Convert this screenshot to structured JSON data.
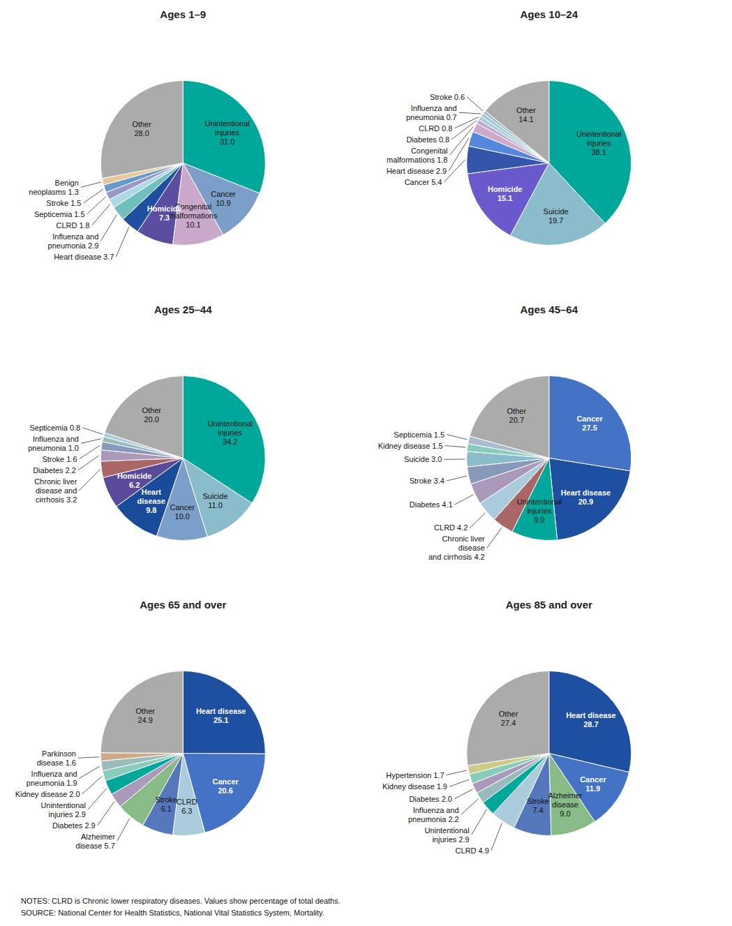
{
  "chart_data": [
    {
      "type": "pie",
      "title": "Ages 1–9",
      "categories": [
        "Unintentional\ninjuries",
        "Cancer",
        "Congenital\nmalformations",
        "Homicide",
        "Heart disease",
        "Influenza and\npneumonia",
        "CLRD",
        "Septicemia",
        "Stroke",
        "Benign\nneoplasms",
        "Other"
      ],
      "values": [
        31.0,
        10.9,
        10.1,
        7.3,
        3.7,
        2.9,
        1.8,
        1.5,
        1.5,
        1.3,
        28.0
      ],
      "value_labels": [
        "31.0",
        "10.9",
        "10.1",
        "7.3",
        "3.7",
        "2.9",
        "1.8",
        "1.5",
        "1.5",
        "1.3",
        "28.0"
      ],
      "colors": [
        "#00A89C",
        "#7B9FC8",
        "#C9A8CB",
        "#5B4EA0",
        "#1F4FA0",
        "#70BFBF",
        "#ADD8E6",
        "#9898CA",
        "#6699CC",
        "#E8C89A",
        "#ABABAB"
      ],
      "data_labels": true
    },
    {
      "type": "pie",
      "title": "Ages 10–24",
      "categories": [
        "Unintentional\ninjuries",
        "Suicide",
        "Homicide",
        "Cancer",
        "Heart disease",
        "Congenital\nmalformations",
        "Diabetes",
        "CLRD",
        "Influenza and\npneumonia",
        "Stroke",
        "Other"
      ],
      "values": [
        38.1,
        19.7,
        15.1,
        5.4,
        2.9,
        1.8,
        0.8,
        0.8,
        0.7,
        0.6,
        14.1
      ],
      "value_labels": [
        "38.1",
        "19.7",
        "15.1",
        "5.4",
        "2.9",
        "1.8",
        "0.8",
        "0.8",
        "0.7",
        "0.6",
        "14.1"
      ],
      "colors": [
        "#00A89C",
        "#8BBCCC",
        "#6A5ACD",
        "#3355AA",
        "#5588DD",
        "#CCAACC",
        "#BBAACC",
        "#AACCDD",
        "#99CCCC",
        "#AABBCC",
        "#ABABAB"
      ],
      "data_labels": true
    },
    {
      "type": "pie",
      "title": "Ages 25–44",
      "categories": [
        "Unintentional\ninjuries",
        "Suicide",
        "Cancer",
        "Heart\ndisease",
        "Homicide",
        "Chronic liver\ndisease and\ncirrhosis",
        "Diabetes",
        "Stroke",
        "Influenza and\npneumonia",
        "Septicemia",
        "Other"
      ],
      "values": [
        34.2,
        11.0,
        10.0,
        9.8,
        6.2,
        3.2,
        2.2,
        1.6,
        1.0,
        0.8,
        20.0
      ],
      "value_labels": [
        "34.2",
        "11.0",
        "10.0",
        "9.8",
        "6.2",
        "3.2",
        "2.2",
        "1.6",
        "1.0",
        "0.8",
        "20.0"
      ],
      "colors": [
        "#00A89C",
        "#8BBCCC",
        "#7B9FC8",
        "#1A4A9A",
        "#5A4A9A",
        "#AA6666",
        "#AA99BB",
        "#8899BB",
        "#99BBBB",
        "#AACCDD",
        "#ABABAB"
      ],
      "data_labels": true
    },
    {
      "type": "pie",
      "title": "Ages 45–64",
      "categories": [
        "Cancer",
        "Heart disease",
        "Unintentional\ninjuries",
        "Chronic liver\ndisease\nand cirrhosis",
        "CLRD",
        "Diabetes",
        "Stroke",
        "Suicide",
        "Kidney disease",
        "Septicemia",
        "Other"
      ],
      "values": [
        27.5,
        20.9,
        9.0,
        4.2,
        4.2,
        4.1,
        3.4,
        3.0,
        1.5,
        1.5,
        20.7
      ],
      "value_labels": [
        "27.5",
        "20.9",
        "9.0",
        "4.2",
        "4.2",
        "4.1",
        "3.4",
        "3.0",
        "1.5",
        "1.5",
        "20.7"
      ],
      "colors": [
        "#4472C4",
        "#1F4FA0",
        "#00A89C",
        "#AA6666",
        "#AACCDD",
        "#AA99BB",
        "#8899BB",
        "#8BBCCC",
        "#88CCBB",
        "#AABBCC",
        "#ABABAB"
      ],
      "data_labels": true
    },
    {
      "type": "pie",
      "title": "Ages 65 and over",
      "categories": [
        "Heart disease",
        "Cancer",
        "CLRD",
        "Stroke",
        "Alzheimer\ndisease",
        "Diabetes",
        "Unintentional\ninjuries",
        "Kidney disease",
        "Influenza and\npneumonia",
        "Parkinson\ndisease",
        "Other"
      ],
      "values": [
        25.1,
        20.6,
        6.3,
        6.1,
        5.7,
        2.9,
        2.9,
        2.0,
        1.9,
        1.6,
        24.9
      ],
      "value_labels": [
        "25.1",
        "20.6",
        "6.3",
        "6.1",
        "5.7",
        "2.9",
        "2.9",
        "2.0",
        "1.9",
        "1.6",
        "24.9"
      ],
      "colors": [
        "#1F4FA0",
        "#4472C4",
        "#AACCDD",
        "#5577BB",
        "#88BB88",
        "#AA99BB",
        "#00A89C",
        "#88CCBB",
        "#99BBBB",
        "#CCAA88",
        "#ABABAB"
      ],
      "data_labels": true
    },
    {
      "type": "pie",
      "title": "Ages 85 and over",
      "categories": [
        "Heart disease",
        "Cancer",
        "Alzheimer\ndisease",
        "Stroke",
        "CLRD",
        "Unintentional\ninjuries",
        "Influenza and\npneumonia",
        "Diabetes",
        "Kidney disease",
        "Hypertension",
        "Other"
      ],
      "values": [
        28.7,
        11.9,
        9.0,
        7.4,
        4.9,
        2.9,
        2.2,
        2.0,
        1.9,
        1.7,
        27.4
      ],
      "value_labels": [
        "28.7",
        "11.9",
        "9.0",
        "7.4",
        "4.9",
        "2.9",
        "2.2",
        "2.0",
        "1.9",
        "1.7",
        "27.4"
      ],
      "colors": [
        "#1F4FA0",
        "#4472C4",
        "#88BB88",
        "#5577BB",
        "#AACCDD",
        "#00A89C",
        "#99BBBB",
        "#AA99BB",
        "#88CCBB",
        "#CCCC88",
        "#ABABAB"
      ],
      "data_labels": true
    }
  ],
  "notes": [
    "NOTES: CLRD is Chronic lower respiratory diseases. Values show percentage of total deaths.",
    "SOURCE: National Center for Health Statistics, National Vital Statistics System, Mortality."
  ]
}
